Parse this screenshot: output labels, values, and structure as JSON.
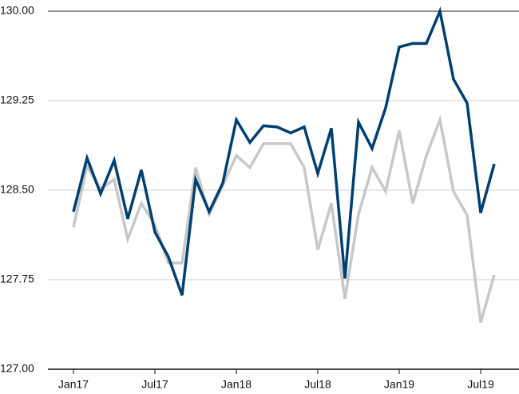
{
  "chart_data": {
    "type": "line",
    "categories": [
      "Jan17",
      null,
      null,
      null,
      null,
      null,
      "Jul17",
      null,
      null,
      null,
      null,
      null,
      "Jan18",
      null,
      null,
      null,
      null,
      null,
      "Jul18",
      null,
      null,
      null,
      null,
      null,
      "Jan19",
      null,
      null,
      null,
      null,
      null,
      "Jul19",
      null
    ],
    "series": [
      {
        "color": "#003f72",
        "values": [
          128.32,
          128.77,
          128.47,
          128.75,
          128.26,
          128.67,
          128.15,
          127.94,
          127.62,
          128.59,
          128.32,
          128.56,
          129.09,
          128.9,
          129.04,
          129.03,
          128.98,
          129.03,
          128.64,
          129.02,
          127.76,
          129.07,
          128.85,
          129.19,
          129.7,
          129.73,
          129.73,
          130.0,
          129.43,
          129.23,
          128.31,
          128.72
        ]
      },
      {
        "color": "#c8c8c8",
        "values": [
          128.19,
          128.7,
          128.51,
          128.59,
          128.09,
          128.39,
          128.21,
          127.89,
          127.89,
          128.69,
          128.3,
          128.54,
          128.79,
          128.69,
          128.89,
          128.89,
          128.89,
          128.69,
          128.0,
          128.39,
          127.59,
          128.3,
          128.69,
          128.49,
          129.0,
          128.39,
          128.79,
          129.09,
          128.49,
          128.29,
          127.39,
          127.79
        ]
      }
    ],
    "ylim": [
      127,
      130
    ],
    "yticks": [
      {
        "value": 127,
        "label": "127.00"
      },
      {
        "value": 127.75,
        "label": "127.75"
      },
      {
        "value": 128.5,
        "label": "128.50"
      },
      {
        "value": 129.25,
        "label": "129.25"
      },
      {
        "value": 130,
        "label": "130.00"
      }
    ],
    "grid": true
  }
}
